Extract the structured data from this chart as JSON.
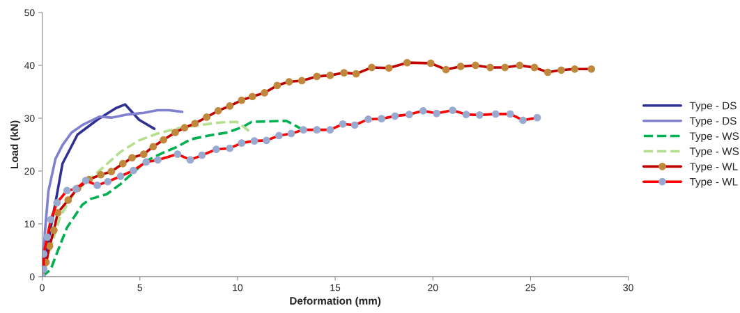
{
  "chart_data": {
    "type": "line",
    "xlabel": "Deformation (mm)",
    "ylabel": "Load (kN)",
    "xlim": [
      0,
      30
    ],
    "xticks": [
      0,
      5,
      10,
      15,
      20,
      25,
      30
    ],
    "ylim": [
      0,
      50
    ],
    "yticks": [
      0,
      10,
      20,
      30,
      40,
      50
    ],
    "grid": false,
    "legend": "right",
    "series": [
      {
        "name": "Type - DS",
        "color": "#2e3192",
        "line_style": "solid",
        "marker": "none",
        "x": [
          0,
          0.2,
          0.44,
          0.68,
          1.04,
          1.81,
          2.82,
          3.77,
          4.25,
          4.96,
          5.74
        ],
        "values": [
          0,
          4,
          9.3,
          14,
          21.4,
          26.9,
          29.7,
          31.9,
          32.6,
          29.7,
          28.0
        ]
      },
      {
        "name": "Type - DS",
        "color": "#8080d0",
        "line_style": "solid",
        "marker": "none",
        "x": [
          0,
          0.14,
          0.32,
          0.68,
          1.04,
          1.51,
          2.1,
          2.94,
          3.54,
          4.37,
          5.2,
          5.9,
          6.5,
          7.17
        ],
        "values": [
          0,
          8.4,
          16.2,
          22.3,
          24.9,
          27.3,
          28.8,
          30.3,
          30.1,
          30.7,
          31.0,
          31.5,
          31.5,
          31.2
        ]
      },
      {
        "name": "Type - WS",
        "color": "#00b050",
        "line_style": "dashed",
        "marker": "none",
        "x": [
          0,
          0.44,
          0.8,
          1.27,
          2.05,
          2.46,
          3.3,
          4.0,
          4.6,
          5.32,
          6.15,
          6.86,
          7.6,
          8.5,
          9.5,
          10.3,
          10.72,
          12.5,
          13.2
        ],
        "values": [
          0,
          1.4,
          4.9,
          9.3,
          13.6,
          14.7,
          15.6,
          17.5,
          19.5,
          21.9,
          23.4,
          24.5,
          26.0,
          26.7,
          27.3,
          28.4,
          29.3,
          29.5,
          28.1
        ]
      },
      {
        "name": "Type - WS",
        "color": "#b5df8e",
        "line_style": "dashed",
        "marker": "none",
        "x": [
          0,
          0.92,
          1.63,
          2.82,
          4.0,
          4.96,
          5.9,
          7.1,
          8.3,
          9.13,
          9.96,
          10.3,
          10.72
        ],
        "values": [
          0,
          11.4,
          15.8,
          19.7,
          23.6,
          25.8,
          27.1,
          28.2,
          28.8,
          29.2,
          29.3,
          28.4,
          27.2
        ]
      },
      {
        "name": "Type - WL",
        "color": "#c00000",
        "line_style": "solid",
        "marker": "circle",
        "x": [
          0,
          0.2,
          0.38,
          0.6,
          0.8,
          1.33,
          1.81,
          2.4,
          3.0,
          3.54,
          4.13,
          4.6,
          5.2,
          5.68,
          6.21,
          6.81,
          7.29,
          7.82,
          8.42,
          9.01,
          9.6,
          10.21,
          10.76,
          11.38,
          12.03,
          12.64,
          13.29,
          14.06,
          14.74,
          15.45,
          16.07,
          16.87,
          17.75,
          18.68,
          19.89,
          20.67,
          21.42,
          22.18,
          22.93,
          23.69,
          24.44,
          25.2,
          25.88,
          26.57,
          27.26,
          28.11
        ],
        "values": [
          0,
          2.7,
          5.8,
          8.8,
          12.1,
          14.5,
          16.7,
          18.4,
          19.3,
          19.9,
          21.4,
          22.5,
          23.2,
          24.6,
          25.9,
          27.3,
          28.2,
          29.0,
          30.2,
          31.4,
          32.3,
          33.4,
          34.1,
          34.8,
          36.2,
          36.9,
          37.1,
          37.9,
          38.1,
          38.6,
          38.4,
          39.6,
          39.5,
          40.5,
          40.4,
          39.2,
          39.8,
          40.0,
          39.6,
          39.6,
          40.0,
          39.6,
          38.7,
          39.1,
          39.3,
          39.3
        ]
      },
      {
        "name": "Type - WL",
        "color": "#ff0000",
        "line_style": "solid",
        "marker": "circle",
        "x": [
          0,
          0.08,
          0.08,
          0.26,
          0.44,
          0.76,
          1.27,
          1.73,
          2.23,
          2.82,
          3.36,
          4.01,
          4.67,
          5.32,
          5.92,
          6.93,
          7.58,
          8.18,
          8.91,
          9.6,
          10.21,
          10.86,
          11.48,
          12.12,
          12.75,
          13.37,
          14.06,
          14.74,
          15.39,
          16.0,
          16.69,
          17.37,
          18.06,
          18.79,
          19.5,
          20.19,
          21.01,
          21.7,
          22.39,
          23.21,
          23.96,
          24.61,
          25.34
        ],
        "values": [
          0,
          1.4,
          4.3,
          7.5,
          10.8,
          14.0,
          16.3,
          16.6,
          18.2,
          17.3,
          18.0,
          19.0,
          20.1,
          21.7,
          22.1,
          23.2,
          22.1,
          23.0,
          24.1,
          24.3,
          25.3,
          25.7,
          25.8,
          26.7,
          27.1,
          27.8,
          27.8,
          27.8,
          28.9,
          28.7,
          29.8,
          29.9,
          30.4,
          30.7,
          31.4,
          30.9,
          31.5,
          30.7,
          30.6,
          30.8,
          30.8,
          29.6,
          30.1
        ]
      }
    ]
  }
}
